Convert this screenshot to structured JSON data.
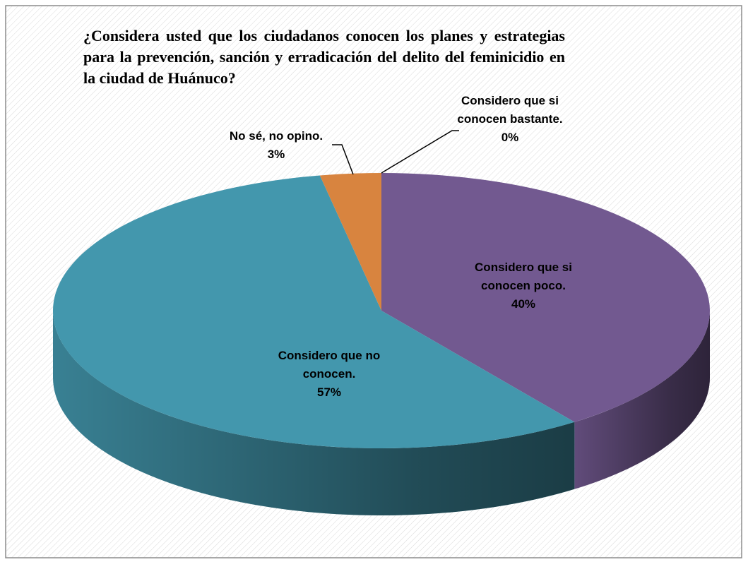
{
  "chart_data": {
    "type": "pie",
    "title": "¿Considera usted que los ciudadanos conocen los planes y estrategias para la prevención, sanción y erradicación del delito del feminicidio en la ciudad de Huánuco?",
    "categories": [
      "Considero que si conocen bastante.",
      "Considero que si conocen poco.",
      "Considero que no conocen.",
      "No sé, no opino."
    ],
    "values": [
      0,
      40,
      57,
      3
    ],
    "value_labels": [
      "0%",
      "40%",
      "57%",
      "3%"
    ],
    "colors": [
      "#4a7ebb",
      "#725990",
      "#4397ad",
      "#d8843f"
    ]
  }
}
